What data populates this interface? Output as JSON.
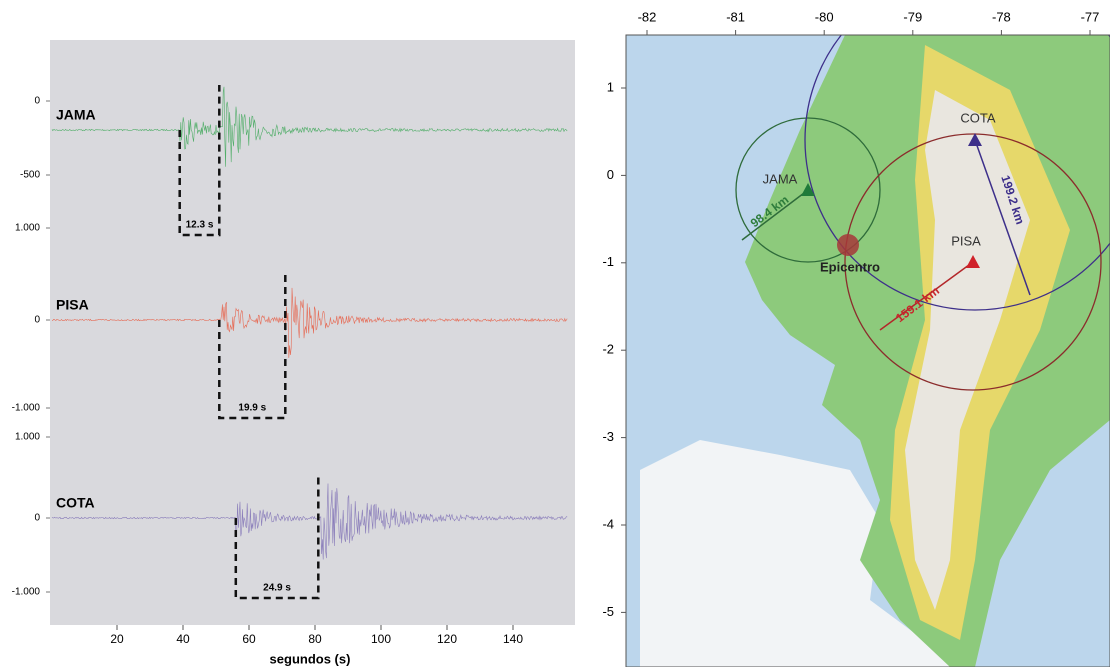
{
  "seismograms": {
    "xlabel": "segundos (s)",
    "xticks": [
      20,
      40,
      60,
      80,
      100,
      120,
      140
    ],
    "traces": [
      {
        "name": "JAMA",
        "color": "#3aa655",
        "yticks": [
          0,
          -500
        ],
        "interval_label": "12.3 s"
      },
      {
        "name": "PISA",
        "color": "#e8583e",
        "yticks": [
          {
            "value": 1000,
            "label": "1.000"
          },
          0,
          {
            "value": -1000,
            "label": "-1.000"
          }
        ],
        "interval_label": "19.9 s"
      },
      {
        "name": "COTA",
        "color": "#7b6cb4",
        "yticks": [
          {
            "value": 1000,
            "label": "1.000"
          },
          0,
          {
            "value": -1000,
            "label": "-1.000"
          }
        ],
        "interval_label": "24.9 s"
      }
    ]
  },
  "map": {
    "lon_ticks": [
      -82,
      -81,
      -80,
      -79,
      -78,
      -77
    ],
    "lat_ticks": [
      1,
      0,
      -1,
      -2,
      -3,
      -4,
      -5
    ],
    "stations": [
      {
        "name": "JAMA",
        "distance": "98.4 km"
      },
      {
        "name": "COTA",
        "distance": "199.2 km"
      },
      {
        "name": "PISA",
        "distance": "159.1 km"
      }
    ],
    "epicenter_label": "Epicentro"
  }
}
